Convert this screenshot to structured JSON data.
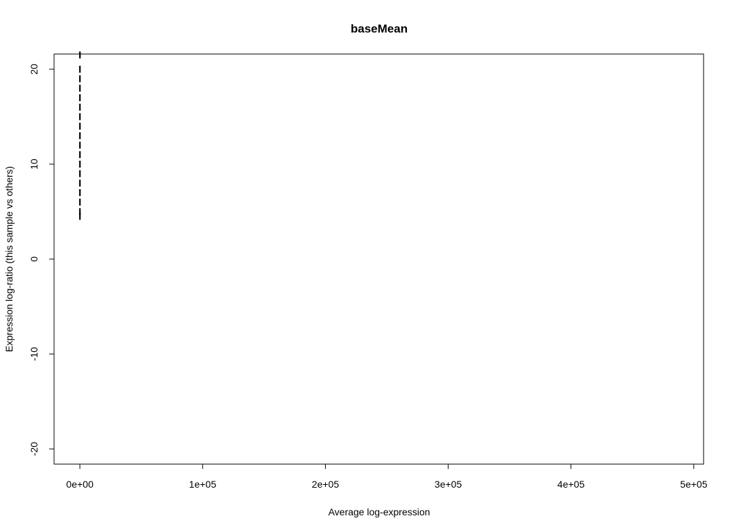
{
  "chart_data": {
    "type": "scatter",
    "title": "baseMean",
    "xlabel": "Average log-expression",
    "ylabel": "Expression log-ratio (this sample vs others)",
    "xlim": [
      -21000,
      508000
    ],
    "ylim": [
      -21.6,
      21.6
    ],
    "x_ticks": [
      0,
      100000,
      200000,
      300000,
      400000,
      500000
    ],
    "x_tick_labels": [
      "0e+00",
      "1e+05",
      "2e+05",
      "3e+05",
      "4e+05",
      "5e+05"
    ],
    "y_ticks": [
      -20,
      -10,
      0,
      10,
      20
    ],
    "y_tick_labels": [
      "-20",
      "-10",
      "0",
      "10",
      "20"
    ],
    "grid": false,
    "legend": "none",
    "series": [
      {
        "color": "#000000",
        "x": [
          0,
          0,
          0,
          0,
          0,
          0,
          0,
          0,
          0,
          0,
          0,
          0,
          0,
          0,
          0,
          0,
          0,
          0
        ],
        "y": [
          4.5,
          5.0,
          6.0,
          7.0,
          8.0,
          9.0,
          10.0,
          11.0,
          12.0,
          13.0,
          14.0,
          15.0,
          16.0,
          17.0,
          18.0,
          19.0,
          20.0,
          21.5
        ]
      }
    ]
  }
}
